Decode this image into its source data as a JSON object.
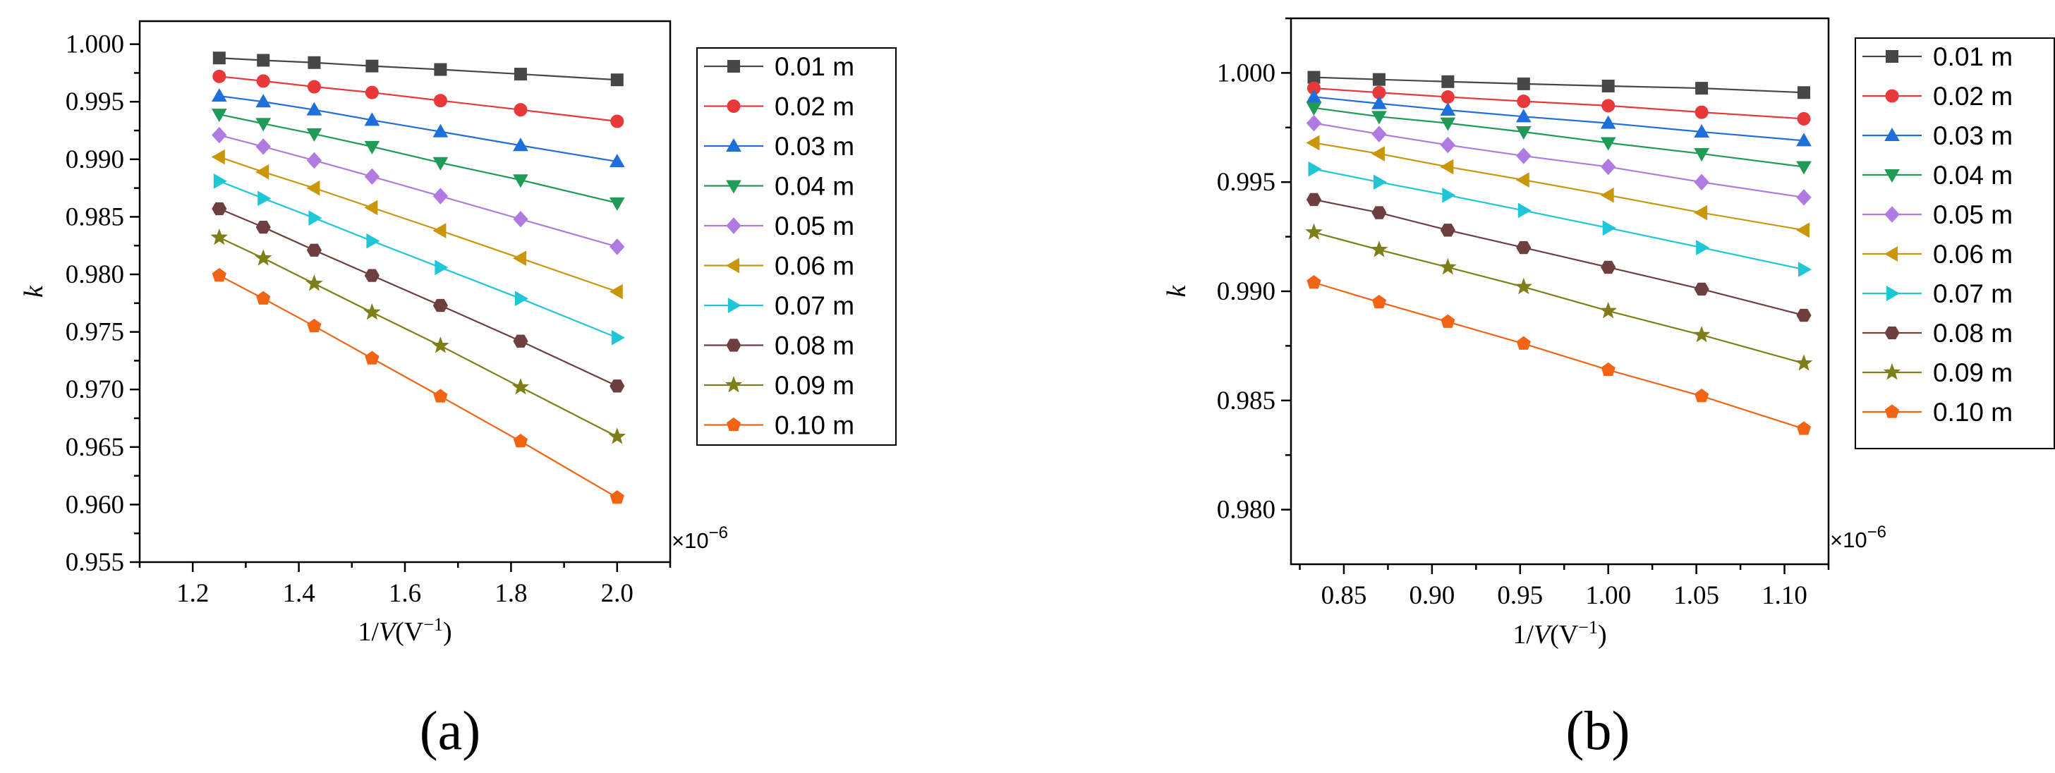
{
  "chart_data": [
    {
      "type": "line",
      "panel_label": "(a)",
      "xlabel_prefix": "1/",
      "xlabel_var": "V",
      "xlabel_unit": "(V",
      "xlabel_exp": "−1",
      "xlabel_close": ")",
      "ylabel": "k",
      "x_multiplier_base": "×10",
      "x_multiplier_exp": "−6",
      "xlim": [
        1.1,
        2.1
      ],
      "ylim": [
        0.955,
        1.002
      ],
      "xticks": [
        1.2,
        1.4,
        1.6,
        1.8,
        2.0
      ],
      "xtick_labels": [
        "1.2",
        "1.4",
        "1.6",
        "1.8",
        "2.0"
      ],
      "yticks": [
        0.955,
        0.96,
        0.965,
        0.97,
        0.975,
        0.98,
        0.985,
        0.99,
        0.995,
        1.0
      ],
      "ytick_labels": [
        "0.955",
        "0.960",
        "0.965",
        "0.970",
        "0.975",
        "0.980",
        "0.985",
        "0.990",
        "0.995",
        "1.000"
      ],
      "legend_position": "right-outside",
      "grid": false,
      "x": [
        1.25,
        1.333,
        1.429,
        1.538,
        1.667,
        1.818,
        2.0
      ],
      "series": [
        {
          "name": "0.01 m",
          "color": "#474747",
          "marker": "square",
          "values": [
            0.9988,
            0.9986,
            0.9984,
            0.9981,
            0.9978,
            0.9974,
            0.9969
          ]
        },
        {
          "name": "0.02 m",
          "color": "#e8383a",
          "marker": "circle",
          "values": [
            0.9972,
            0.9968,
            0.9963,
            0.9958,
            0.9951,
            0.9943,
            0.9933
          ]
        },
        {
          "name": "0.03 m",
          "color": "#1f6fdb",
          "marker": "triangle-up",
          "values": [
            0.9955,
            0.995,
            0.9943,
            0.9934,
            0.9924,
            0.9912,
            0.9898
          ]
        },
        {
          "name": "0.04 m",
          "color": "#1f9b57",
          "marker": "triangle-down",
          "values": [
            0.9939,
            0.9931,
            0.9922,
            0.9911,
            0.9897,
            0.9882,
            0.9862
          ]
        },
        {
          "name": "0.05 m",
          "color": "#b07be0",
          "marker": "diamond",
          "values": [
            0.9921,
            0.9911,
            0.9899,
            0.9885,
            0.9868,
            0.9848,
            0.9824
          ]
        },
        {
          "name": "0.06 m",
          "color": "#c9960c",
          "marker": "triangle-left",
          "values": [
            0.9902,
            0.9889,
            0.9875,
            0.9858,
            0.9838,
            0.9814,
            0.9785
          ]
        },
        {
          "name": "0.07 m",
          "color": "#1fc7d6",
          "marker": "triangle-right",
          "values": [
            0.9881,
            0.9866,
            0.9849,
            0.9829,
            0.9806,
            0.9779,
            0.9745
          ]
        },
        {
          "name": "0.08 m",
          "color": "#6e3f3f",
          "marker": "hexagon",
          "values": [
            0.9857,
            0.9841,
            0.9821,
            0.9799,
            0.9773,
            0.9742,
            0.9703
          ]
        },
        {
          "name": "0.09 m",
          "color": "#7f7f1a",
          "marker": "star",
          "values": [
            0.9832,
            0.9814,
            0.9792,
            0.9767,
            0.9738,
            0.9702,
            0.9659
          ]
        },
        {
          "name": "0.10 m",
          "color": "#f06414",
          "marker": "pentagon",
          "values": [
            0.9799,
            0.9779,
            0.9755,
            0.9727,
            0.9694,
            0.9655,
            0.9606
          ]
        }
      ]
    },
    {
      "type": "line",
      "panel_label": "(b)",
      "xlabel_prefix": "1/",
      "xlabel_var": "V",
      "xlabel_unit": "(V",
      "xlabel_exp": "−1",
      "xlabel_close": ")",
      "ylabel": "k",
      "x_multiplier_base": "×10",
      "x_multiplier_exp": "−6",
      "xlim": [
        0.82,
        1.125
      ],
      "ylim": [
        0.9775,
        1.0025
      ],
      "xticks": [
        0.85,
        0.9,
        0.95,
        1.0,
        1.05,
        1.1
      ],
      "xtick_labels": [
        "0.85",
        "0.90",
        "0.95",
        "1.00",
        "1.05",
        "1.10"
      ],
      "yticks": [
        0.98,
        0.985,
        0.99,
        0.995,
        1.0
      ],
      "ytick_labels": [
        "0.980",
        "0.985",
        "0.990",
        "0.995",
        "1.000"
      ],
      "legend_position": "right-outside",
      "grid": false,
      "x": [
        0.833,
        0.87,
        0.909,
        0.952,
        1.0,
        1.053,
        1.111
      ],
      "series": [
        {
          "name": "0.01 m",
          "color": "#474747",
          "marker": "square",
          "values": [
            0.9998,
            0.9997,
            0.9996,
            0.9995,
            0.9994,
            0.9993,
            0.9991
          ]
        },
        {
          "name": "0.02 m",
          "color": "#e8383a",
          "marker": "circle",
          "values": [
            0.9993,
            0.9991,
            0.9989,
            0.9987,
            0.9985,
            0.9982,
            0.9979
          ]
        },
        {
          "name": "0.03 m",
          "color": "#1f6fdb",
          "marker": "triangle-up",
          "values": [
            0.9989,
            0.9986,
            0.9983,
            0.998,
            0.9977,
            0.9973,
            0.9969
          ]
        },
        {
          "name": "0.04 m",
          "color": "#1f9b57",
          "marker": "triangle-down",
          "values": [
            0.9984,
            0.998,
            0.9977,
            0.9973,
            0.9968,
            0.9963,
            0.9957
          ]
        },
        {
          "name": "0.05 m",
          "color": "#b07be0",
          "marker": "diamond",
          "values": [
            0.9977,
            0.9972,
            0.9967,
            0.9962,
            0.9957,
            0.995,
            0.9943
          ]
        },
        {
          "name": "0.06 m",
          "color": "#c9960c",
          "marker": "triangle-left",
          "values": [
            0.9968,
            0.9963,
            0.9957,
            0.9951,
            0.9944,
            0.9936,
            0.9928
          ]
        },
        {
          "name": "0.07 m",
          "color": "#1fc7d6",
          "marker": "triangle-right",
          "values": [
            0.9956,
            0.995,
            0.9944,
            0.9937,
            0.9929,
            0.992,
            0.991
          ]
        },
        {
          "name": "0.08 m",
          "color": "#6e3f3f",
          "marker": "hexagon",
          "values": [
            0.9942,
            0.9936,
            0.9928,
            0.992,
            0.9911,
            0.9901,
            0.9889
          ]
        },
        {
          "name": "0.09 m",
          "color": "#7f7f1a",
          "marker": "star",
          "values": [
            0.9927,
            0.9919,
            0.9911,
            0.9902,
            0.9891,
            0.988,
            0.9867
          ]
        },
        {
          "name": "0.10 m",
          "color": "#f06414",
          "marker": "pentagon",
          "values": [
            0.9904,
            0.9895,
            0.9886,
            0.9876,
            0.9864,
            0.9852,
            0.9837
          ]
        }
      ]
    }
  ]
}
